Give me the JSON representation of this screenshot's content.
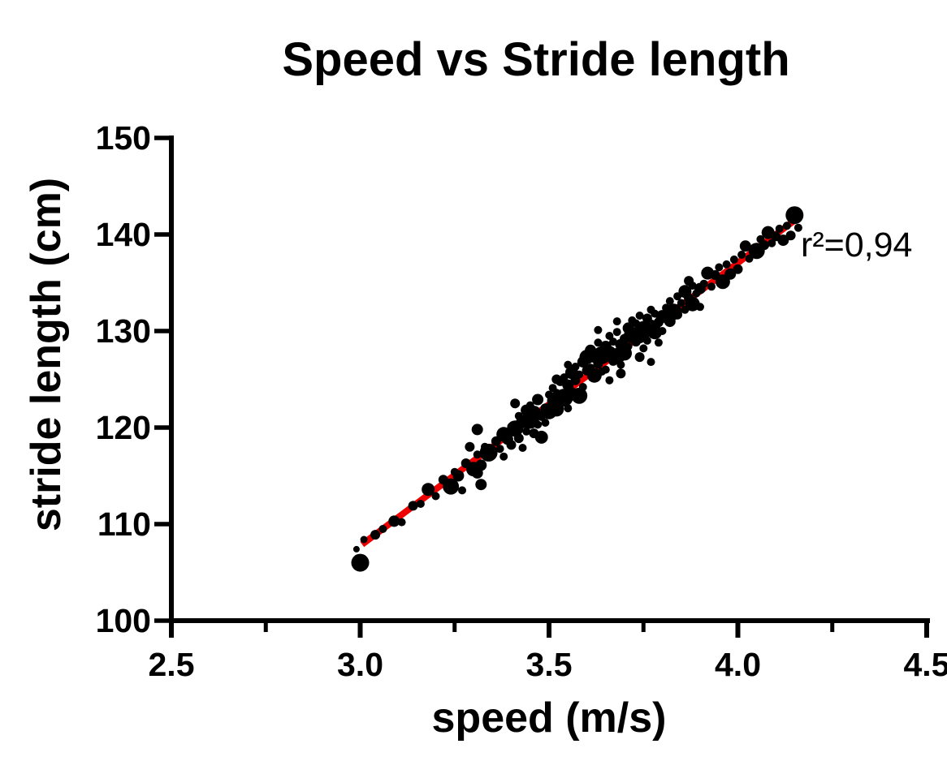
{
  "annotation": {
    "r_squared_label": "r²=0,94"
  },
  "chart_data": {
    "type": "scatter",
    "title": "Speed vs Stride length",
    "xlabel": "speed (m/s)",
    "ylabel": "stride length (cm)",
    "xlim": [
      2.5,
      4.5
    ],
    "ylim": [
      100,
      150
    ],
    "x_major_ticks": [
      2.5,
      3.0,
      3.5,
      4.0,
      4.5
    ],
    "x_minor_ticks": [
      2.75,
      3.25,
      3.75,
      4.25
    ],
    "x_tick_labels": [
      "2.5",
      "3.0",
      "3.5",
      "4.0",
      "4.5"
    ],
    "y_major_ticks": [
      100,
      110,
      120,
      130,
      140,
      150
    ],
    "y_tick_labels": [
      "100",
      "110",
      "120",
      "130",
      "140",
      "150"
    ],
    "grid": false,
    "legend": null,
    "marker_color": "#000000",
    "axis_color": "#000000",
    "background_color": "#ffffff",
    "r_squared": 0.94,
    "fit_line": {
      "color": "#ee0000",
      "width": 8,
      "x1": 3.005,
      "y1": 107.9,
      "x2": 4.155,
      "y2": 141.6
    },
    "points": [
      [
        3.0,
        106.0,
        11
      ],
      [
        2.99,
        107.4,
        4
      ],
      [
        3.01,
        108.4,
        4.5
      ],
      [
        3.04,
        108.9,
        6
      ],
      [
        3.06,
        109.5,
        5
      ],
      [
        3.09,
        110.3,
        7
      ],
      [
        3.11,
        110.2,
        5
      ],
      [
        3.14,
        111.9,
        6
      ],
      [
        3.16,
        112.1,
        5
      ],
      [
        3.18,
        113.6,
        8
      ],
      [
        3.2,
        112.9,
        5
      ],
      [
        3.22,
        114.6,
        6
      ],
      [
        3.24,
        113.9,
        10
      ],
      [
        3.25,
        115.4,
        5
      ],
      [
        3.26,
        115.0,
        7
      ],
      [
        3.27,
        113.5,
        5
      ],
      [
        3.28,
        116.3,
        6
      ],
      [
        3.29,
        118.0,
        6
      ],
      [
        3.3,
        115.7,
        9
      ],
      [
        3.31,
        117.2,
        5
      ],
      [
        3.31,
        119.8,
        7
      ],
      [
        3.32,
        116.1,
        7
      ],
      [
        3.31,
        115.3,
        7
      ],
      [
        3.32,
        114.1,
        7
      ],
      [
        3.33,
        118.0,
        5
      ],
      [
        3.34,
        117.4,
        11
      ],
      [
        3.36,
        118.6,
        6
      ],
      [
        3.37,
        117.8,
        5
      ],
      [
        3.38,
        119.3,
        9
      ],
      [
        3.38,
        117.0,
        5
      ],
      [
        3.39,
        118.8,
        7
      ],
      [
        3.4,
        120.1,
        5
      ],
      [
        3.4,
        118.2,
        6
      ],
      [
        3.41,
        119.9,
        10
      ],
      [
        3.41,
        122.5,
        6
      ],
      [
        3.42,
        121.2,
        5
      ],
      [
        3.42,
        118.9,
        6
      ],
      [
        3.43,
        120.6,
        8
      ],
      [
        3.43,
        117.9,
        5
      ],
      [
        3.44,
        119.6,
        5
      ],
      [
        3.44,
        121.8,
        7
      ],
      [
        3.45,
        120.8,
        11
      ],
      [
        3.45,
        122.3,
        5
      ],
      [
        3.46,
        119.4,
        6
      ],
      [
        3.46,
        121.5,
        9
      ],
      [
        3.47,
        120.3,
        5
      ],
      [
        3.47,
        122.9,
        7
      ],
      [
        3.48,
        121.1,
        5
      ],
      [
        3.48,
        119.0,
        8
      ],
      [
        3.49,
        122.0,
        6
      ],
      [
        3.49,
        120.5,
        5
      ],
      [
        3.5,
        121.7,
        10
      ],
      [
        3.5,
        123.4,
        5
      ],
      [
        3.51,
        122.8,
        7
      ],
      [
        3.51,
        124.1,
        5
      ],
      [
        3.52,
        121.9,
        9
      ],
      [
        3.52,
        123.6,
        5
      ],
      [
        3.52,
        125.0,
        6
      ],
      [
        3.53,
        124.8,
        6
      ],
      [
        3.53,
        122.4,
        5
      ],
      [
        3.54,
        123.1,
        11
      ],
      [
        3.54,
        125.2,
        5
      ],
      [
        3.55,
        124.4,
        7
      ],
      [
        3.55,
        122.0,
        5
      ],
      [
        3.55,
        126.5,
        5
      ],
      [
        3.56,
        125.7,
        8
      ],
      [
        3.56,
        123.8,
        5
      ],
      [
        3.57,
        124.9,
        6
      ],
      [
        3.57,
        126.3,
        5
      ],
      [
        3.58,
        123.3,
        10
      ],
      [
        3.58,
        125.5,
        5
      ],
      [
        3.59,
        126.8,
        7
      ],
      [
        3.59,
        124.2,
        5
      ],
      [
        3.6,
        125.9,
        6
      ],
      [
        3.6,
        127.3,
        9
      ],
      [
        3.61,
        126.2,
        5
      ],
      [
        3.61,
        128.0,
        7
      ],
      [
        3.62,
        125.4,
        9
      ],
      [
        3.62,
        127.1,
        5
      ],
      [
        3.63,
        126.6,
        6
      ],
      [
        3.63,
        128.8,
        5
      ],
      [
        3.63,
        130.1,
        5
      ],
      [
        3.64,
        127.5,
        11
      ],
      [
        3.64,
        125.8,
        5
      ],
      [
        3.65,
        128.4,
        7
      ],
      [
        3.65,
        126.0,
        5
      ],
      [
        3.66,
        127.8,
        8
      ],
      [
        3.66,
        129.5,
        5
      ],
      [
        3.66,
        124.9,
        5
      ],
      [
        3.67,
        126.9,
        6
      ],
      [
        3.67,
        128.9,
        5
      ],
      [
        3.68,
        127.4,
        10
      ],
      [
        3.68,
        129.9,
        5
      ],
      [
        3.68,
        131.0,
        5
      ],
      [
        3.69,
        128.6,
        7
      ],
      [
        3.69,
        126.5,
        5
      ],
      [
        3.69,
        125.6,
        6
      ],
      [
        3.7,
        129.2,
        6
      ],
      [
        3.7,
        127.7,
        9
      ],
      [
        3.71,
        130.3,
        7
      ],
      [
        3.71,
        128.4,
        5
      ],
      [
        3.72,
        129.6,
        10
      ],
      [
        3.72,
        131.1,
        5
      ],
      [
        3.73,
        128.9,
        6
      ],
      [
        3.73,
        130.8,
        5
      ],
      [
        3.74,
        129.4,
        8
      ],
      [
        3.74,
        131.6,
        5
      ],
      [
        3.74,
        127.3,
        6
      ],
      [
        3.75,
        130.1,
        11
      ],
      [
        3.75,
        128.2,
        5
      ],
      [
        3.76,
        131.3,
        6
      ],
      [
        3.76,
        129.0,
        5
      ],
      [
        3.77,
        130.6,
        7
      ],
      [
        3.77,
        132.2,
        5
      ],
      [
        3.77,
        126.8,
        5
      ],
      [
        3.78,
        129.9,
        9
      ],
      [
        3.78,
        131.8,
        5
      ],
      [
        3.79,
        130.9,
        6
      ],
      [
        3.79,
        128.8,
        5
      ],
      [
        3.8,
        131.5,
        8
      ],
      [
        3.8,
        130.0,
        5
      ],
      [
        3.81,
        132.4,
        5
      ],
      [
        3.82,
        131.0,
        7
      ],
      [
        3.82,
        133.1,
        5
      ],
      [
        3.83,
        132.0,
        10
      ],
      [
        3.84,
        133.6,
        5
      ],
      [
        3.84,
        131.7,
        6
      ],
      [
        3.85,
        132.9,
        5
      ],
      [
        3.86,
        134.1,
        8
      ],
      [
        3.86,
        132.2,
        5
      ],
      [
        3.87,
        133.4,
        6
      ],
      [
        3.87,
        135.2,
        6
      ],
      [
        3.88,
        134.7,
        5
      ],
      [
        3.88,
        132.8,
        9
      ],
      [
        3.89,
        133.9,
        5
      ],
      [
        3.9,
        134.4,
        7
      ],
      [
        3.9,
        132.5,
        5
      ],
      [
        3.91,
        134.9,
        5
      ],
      [
        3.92,
        136.0,
        8
      ],
      [
        3.93,
        134.6,
        5
      ],
      [
        3.94,
        135.8,
        6
      ],
      [
        3.95,
        136.6,
        5
      ],
      [
        3.96,
        135.1,
        9
      ],
      [
        3.97,
        136.9,
        5
      ],
      [
        3.98,
        135.9,
        7
      ],
      [
        3.99,
        137.4,
        5
      ],
      [
        4.0,
        136.4,
        6
      ],
      [
        4.01,
        137.9,
        5
      ],
      [
        4.02,
        138.8,
        7
      ],
      [
        4.03,
        137.5,
        5
      ],
      [
        4.05,
        138.3,
        10
      ],
      [
        4.06,
        139.5,
        5
      ],
      [
        4.07,
        138.9,
        6
      ],
      [
        4.08,
        140.2,
        8
      ],
      [
        4.09,
        139.1,
        5
      ],
      [
        4.1,
        139.8,
        6
      ],
      [
        4.11,
        140.6,
        5
      ],
      [
        4.12,
        139.4,
        7
      ],
      [
        4.13,
        140.9,
        5
      ],
      [
        4.14,
        139.9,
        6
      ],
      [
        4.16,
        140.7,
        5
      ],
      [
        4.15,
        142.0,
        11
      ]
    ]
  }
}
